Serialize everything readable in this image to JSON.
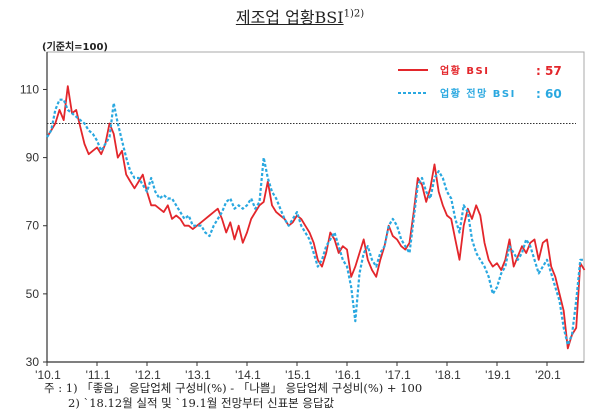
{
  "chart_data": {
    "type": "line",
    "title": "제조업 업황BSI",
    "title_superscript": "1)2)",
    "unit_label": "(기준치=100)",
    "x_start": "2010.1",
    "x_frequency": "monthly",
    "xtick_labels": [
      "'10.1",
      "'11.1",
      "'12.1",
      "'13.1",
      "'14.1",
      "'15.1",
      "'16.1",
      "'17.1",
      "'18.1",
      "'19.1",
      "'20.1"
    ],
    "ytick_labels": [
      "30",
      "50",
      "70",
      "90",
      "110"
    ],
    "ylim": [
      30,
      121
    ],
    "reference_line": 100,
    "series": [
      {
        "name": "업황 BSI",
        "legend_value": ": 57",
        "color": "#e3262b",
        "style": "solid",
        "values": [
          96,
          98,
          100,
          104,
          101,
          111,
          103,
          104,
          99,
          94,
          91,
          92,
          93,
          91,
          94,
          100,
          97,
          90,
          92,
          85,
          83,
          81,
          83,
          85,
          80,
          76,
          76,
          75,
          74,
          76,
          72,
          73,
          72,
          70,
          70,
          69,
          70,
          71,
          72,
          73,
          74,
          75,
          72,
          68,
          71,
          66,
          70,
          65,
          68,
          72,
          74,
          76,
          77,
          83,
          76,
          74,
          73,
          72,
          70,
          71,
          73,
          72,
          70,
          68,
          65,
          60,
          58,
          62,
          68,
          66,
          62,
          64,
          63,
          55,
          58,
          62,
          66,
          60,
          57,
          55,
          60,
          64,
          70,
          67,
          66,
          64,
          63,
          65,
          74,
          84,
          82,
          77,
          81,
          88,
          80,
          76,
          73,
          72,
          66,
          60,
          70,
          75,
          72,
          76,
          73,
          65,
          60,
          58,
          59,
          57,
          60,
          66,
          58,
          61,
          64,
          62,
          65,
          66,
          60,
          65,
          66,
          58,
          55,
          50,
          45,
          34,
          38,
          40,
          59,
          57
        ]
      },
      {
        "name": "업황 전망 BSI",
        "legend_value": ": 60",
        "color": "#2aa8e0",
        "style": "dashed",
        "values": [
          96,
          98,
          104,
          107,
          107,
          104,
          103,
          102,
          101,
          100,
          98,
          97,
          95,
          92,
          94,
          96,
          106,
          100,
          95,
          90,
          86,
          84,
          84,
          82,
          80,
          84,
          80,
          78,
          79,
          78,
          78,
          76,
          74,
          72,
          73,
          70,
          70,
          70,
          68,
          67,
          70,
          72,
          74,
          77,
          78,
          75,
          76,
          75,
          76,
          78,
          75,
          77,
          90,
          84,
          80,
          78,
          75,
          72,
          70,
          72,
          74,
          70,
          68,
          66,
          62,
          58,
          60,
          64,
          66,
          68,
          64,
          60,
          58,
          52,
          42,
          56,
          62,
          64,
          60,
          58,
          62,
          64,
          70,
          72,
          70,
          66,
          64,
          62,
          72,
          82,
          84,
          80,
          78,
          84,
          86,
          84,
          80,
          78,
          72,
          68,
          76,
          74,
          66,
          62,
          60,
          58,
          55,
          50,
          52,
          56,
          58,
          64,
          62,
          60,
          62,
          66,
          64,
          60,
          56,
          58,
          60,
          56,
          52,
          48,
          40,
          35,
          38,
          48,
          60,
          60
        ]
      }
    ],
    "notes": [
      "주 : 1) 「좋음」 응답업체 구성비(%) - 「나쁨」 응답업체 구성비(%) + 100",
      "2) `18.12월 실적 및 `19.1월 전망부터 신표본 응답값"
    ]
  }
}
